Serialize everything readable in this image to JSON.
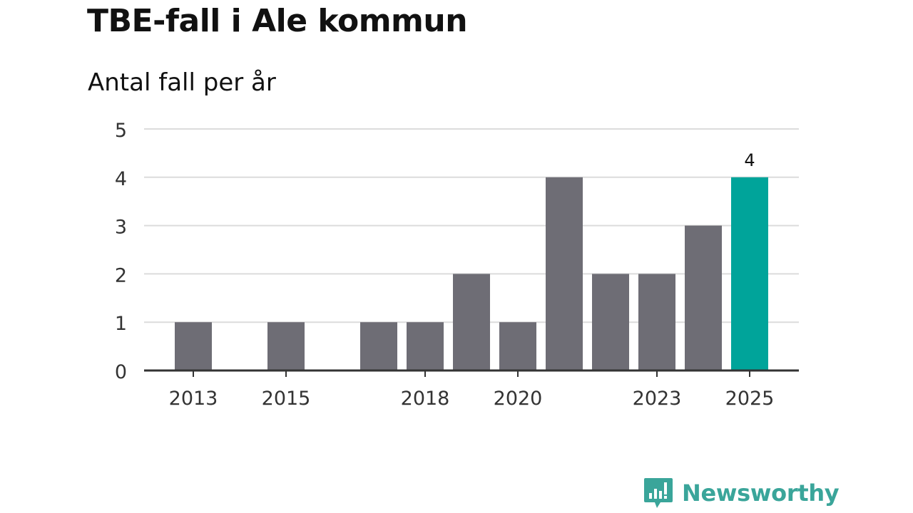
{
  "chart_data": {
    "type": "bar",
    "title": "TBE-fall i Ale kommun",
    "subtitle": "Antal fall per år",
    "xlabel": "",
    "ylabel": "",
    "ylim": [
      0,
      5
    ],
    "yticks": [
      0,
      1,
      2,
      3,
      4,
      5
    ],
    "categories": [
      "2013",
      "2014",
      "2015",
      "2016",
      "2017",
      "2018",
      "2019",
      "2020",
      "2021",
      "2022",
      "2023",
      "2024",
      "2025"
    ],
    "values": [
      1,
      0,
      1,
      0,
      1,
      1,
      2,
      1,
      4,
      2,
      2,
      3,
      4
    ],
    "xtick_labels": [
      "2013",
      "2015",
      "2018",
      "2020",
      "2023",
      "2025"
    ],
    "highlight_category": "2025",
    "data_labels": [
      {
        "category": "2025",
        "text": "4"
      }
    ],
    "grid": true
  },
  "colors": {
    "bar": "#6e6d75",
    "highlight": "#00a49a",
    "grid": "#dcdcdc",
    "axis": "#333333",
    "text": "#333333",
    "brand": "#3aa59a"
  },
  "brand": {
    "name": "Newsworthy",
    "icon": "newsworthy-logo-icon"
  }
}
